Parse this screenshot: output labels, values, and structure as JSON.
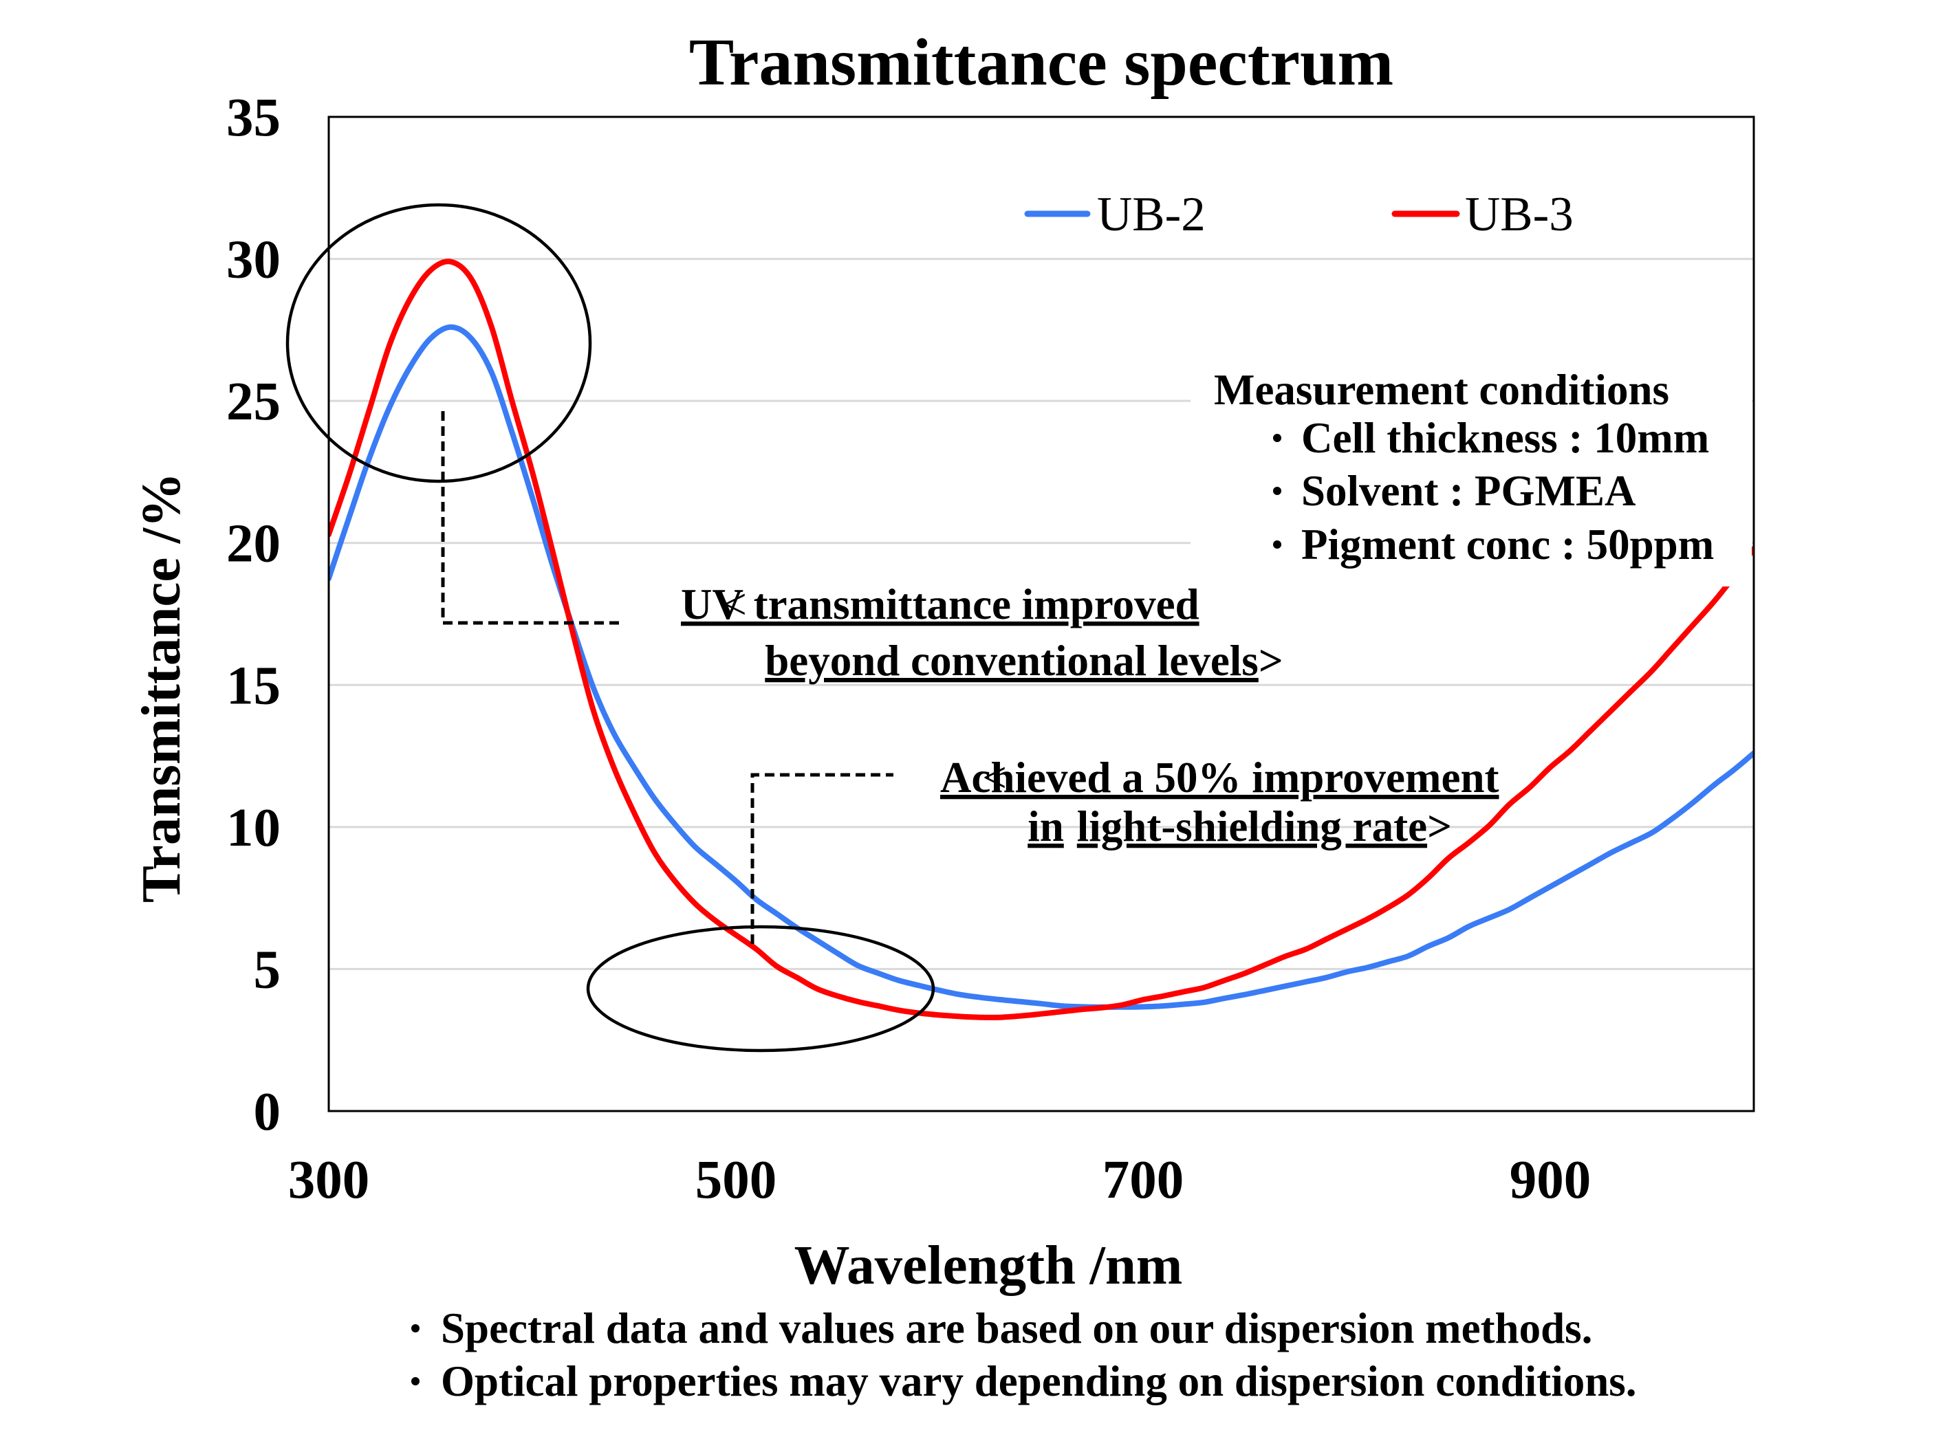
{
  "chart_data": {
    "type": "line",
    "title": "Transmittance spectrum",
    "xlabel": "Wavelength /nm",
    "ylabel": "Transmittance /%",
    "xlim": [
      300,
      1000
    ],
    "ylim": [
      0,
      35
    ],
    "xticks": [
      300,
      500,
      700,
      900
    ],
    "yticks": [
      0,
      5,
      10,
      15,
      20,
      25,
      30,
      35
    ],
    "grid": "horizontal",
    "legend": {
      "position": "top-right",
      "entries": [
        "UB-2",
        "UB-3"
      ]
    },
    "x": [
      300,
      310,
      320,
      330,
      340,
      350,
      360,
      370,
      380,
      390,
      400,
      410,
      420,
      430,
      440,
      450,
      460,
      470,
      480,
      490,
      500,
      510,
      520,
      530,
      540,
      550,
      560,
      570,
      580,
      590,
      600,
      610,
      620,
      630,
      640,
      650,
      660,
      670,
      680,
      690,
      700,
      710,
      720,
      730,
      740,
      750,
      760,
      770,
      780,
      790,
      800,
      810,
      820,
      830,
      840,
      850,
      860,
      870,
      880,
      890,
      900,
      910,
      920,
      930,
      940,
      950,
      960,
      970,
      980,
      990,
      1000
    ],
    "series": [
      {
        "name": "UB-2",
        "color": "#3a7cf5",
        "values": [
          18.75,
          20.9,
          23.0,
          24.8,
          26.2,
          27.2,
          27.6,
          27.2,
          26.0,
          23.9,
          21.6,
          19.2,
          17.0,
          14.9,
          13.3,
          12.1,
          11.0,
          10.1,
          9.3,
          8.7,
          8.1,
          7.45,
          6.95,
          6.45,
          6.0,
          5.55,
          5.12,
          4.85,
          4.6,
          4.42,
          4.25,
          4.1,
          4.0,
          3.92,
          3.85,
          3.78,
          3.7,
          3.67,
          3.66,
          3.66,
          3.67,
          3.7,
          3.76,
          3.83,
          3.97,
          4.1,
          4.25,
          4.4,
          4.55,
          4.7,
          4.9,
          5.05,
          5.25,
          5.45,
          5.8,
          6.1,
          6.5,
          6.8,
          7.1,
          7.5,
          7.9,
          8.3,
          8.7,
          9.1,
          9.45,
          9.8,
          10.3,
          10.85,
          11.45,
          12.0,
          12.6
        ]
      },
      {
        "name": "UB-3",
        "color": "#ff0000",
        "values": [
          20.3,
          22.4,
          24.7,
          27.0,
          28.6,
          29.6,
          29.9,
          29.3,
          27.6,
          25.0,
          22.5,
          19.7,
          16.8,
          14.1,
          12.1,
          10.5,
          9.1,
          8.1,
          7.3,
          6.7,
          6.2,
          5.7,
          5.1,
          4.7,
          4.3,
          4.05,
          3.85,
          3.7,
          3.55,
          3.45,
          3.38,
          3.33,
          3.3,
          3.3,
          3.35,
          3.42,
          3.5,
          3.58,
          3.64,
          3.74,
          3.92,
          4.05,
          4.2,
          4.35,
          4.6,
          4.85,
          5.15,
          5.45,
          5.7,
          6.05,
          6.4,
          6.75,
          7.15,
          7.6,
          8.2,
          8.9,
          9.45,
          10.05,
          10.8,
          11.4,
          12.1,
          12.7,
          13.4,
          14.1,
          14.8,
          15.5,
          16.3,
          17.1,
          17.9,
          18.8,
          19.8
        ]
      }
    ]
  },
  "annotations": {
    "uv": {
      "open": "<",
      "line1": "UV transmittance improved",
      "line2": "beyond conventional levels",
      "close": ">"
    },
    "shielding": {
      "open": "<",
      "line1": "Achieved a 50% improvement",
      "line2_part1": "in",
      "line2_part2": "light-shielding rate",
      "close": ">"
    }
  },
  "measurement_conditions": {
    "heading": "Measurement conditions",
    "bullet_icon": "dot-bullet-icon",
    "items": [
      "Cell thickness : 10mm",
      "Solvent : PGMEA",
      "Pigment conc : 50ppm"
    ]
  },
  "notes": {
    "bullet_icon": "dot-bullet-icon",
    "items": [
      "Spectral data and values are based on our dispersion methods.",
      "Optical properties may vary depending on dispersion conditions."
    ]
  }
}
